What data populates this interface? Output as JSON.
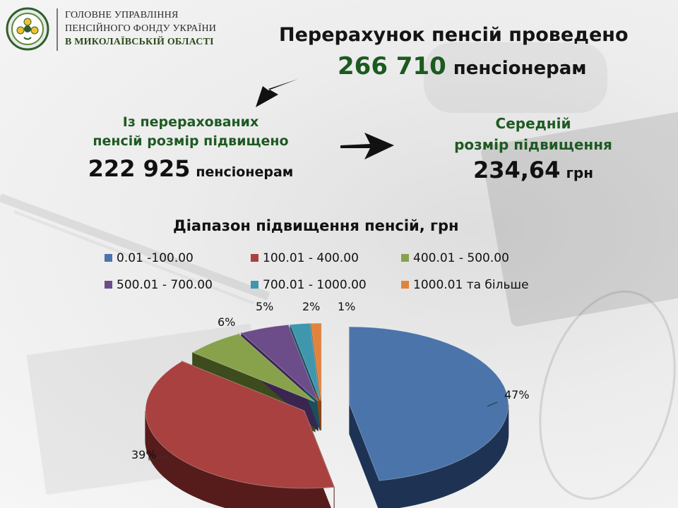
{
  "org": {
    "line1": "ГОЛОВНЕ УПРАВЛІННЯ",
    "line2": "ПЕНСІЙНОГО ФОНДУ УКРАЇНИ",
    "line3": "В МИКОЛАЇВСЬКІЙ ОБЛАСТІ"
  },
  "headline": {
    "line1": "Перерахунок пенсій проведено",
    "number": "266 710",
    "suffix": "пенсіонерам"
  },
  "left_block": {
    "line1": "Із перерахованих",
    "line2": "пенсій розмір підвищено",
    "number": "222 925",
    "suffix": "пенсіонерам"
  },
  "right_block": {
    "line1": "Середній",
    "line2": "розмір підвищення",
    "number": "234,64",
    "suffix": "грн"
  },
  "chart_data": {
    "type": "pie",
    "title": "Діапазон підвищення пенсій, грн",
    "legend_position": "top",
    "categories": [
      "0.01 -100.00",
      "100.01 - 400.00",
      "400.01 - 500.00",
      "500.01 - 700.00",
      "700.01 - 1000.00",
      "1000.01 та більше"
    ],
    "values": [
      47,
      39,
      6,
      5,
      2,
      1
    ],
    "labels": [
      "47%",
      "39%",
      "6%",
      "5%",
      "2%",
      "1%"
    ],
    "colors": [
      "#4a74aa",
      "#a8413f",
      "#87a24a",
      "#6d4c8a",
      "#3e97ad",
      "#e2833c"
    ],
    "dark_colors": [
      "#1e3354",
      "#561c1b",
      "#3d4b1d",
      "#3a2550",
      "#1a4f5c",
      "#8a4715"
    ]
  }
}
